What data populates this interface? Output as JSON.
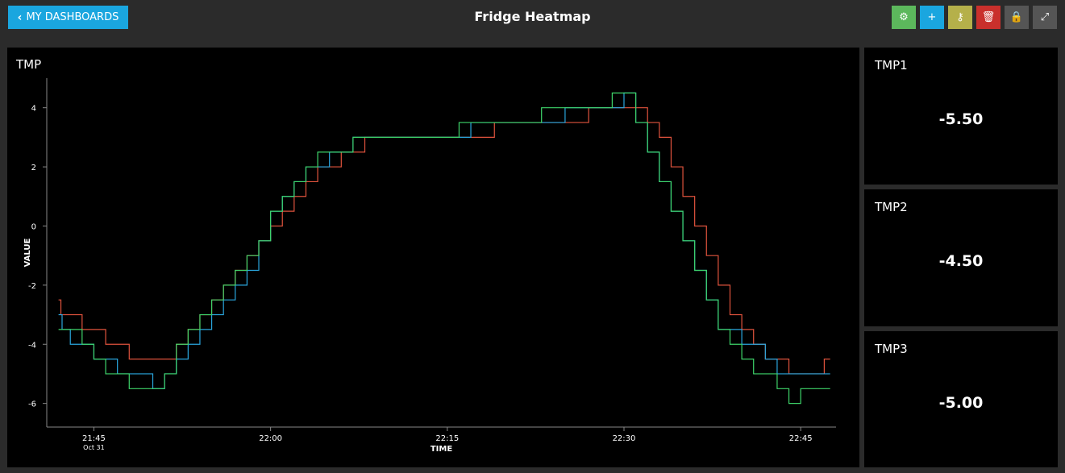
{
  "header": {
    "back_label": "MY DASHBOARDS",
    "title": "Fridge Heatmap",
    "tools": [
      {
        "icon": "gear-icon",
        "glyph": "⚙",
        "color": "#5cb85c"
      },
      {
        "icon": "plus-icon",
        "glyph": "+",
        "color": "#1aa6df"
      },
      {
        "icon": "key-icon",
        "glyph": "⚷",
        "color": "#b5b04a"
      },
      {
        "icon": "trash-icon",
        "glyph": "🗑",
        "color": "#c9302c"
      },
      {
        "icon": "lock-icon",
        "glyph": "🔒",
        "color": "#555555"
      },
      {
        "icon": "expand-icon",
        "glyph": "⤢",
        "color": "#555555"
      }
    ]
  },
  "chart_panel": {
    "title": "TMP"
  },
  "value_panels": [
    {
      "title": "TMP1",
      "value": "-5.50"
    },
    {
      "title": "TMP2",
      "value": "-4.50"
    },
    {
      "title": "TMP3",
      "value": "-5.00"
    }
  ],
  "chart_data": {
    "type": "line",
    "xlabel": "TIME",
    "ylabel": "VALUE",
    "x_unit": "minutes",
    "xlim": [
      "21:41",
      "22:48"
    ],
    "ylim": [
      -6.8,
      5
    ],
    "x_ticks": [
      {
        "time": "21:45",
        "label": "21:45",
        "sublabel": "Oct 31"
      },
      {
        "time": "22:00",
        "label": "22:00"
      },
      {
        "time": "22:15",
        "label": "22:15"
      },
      {
        "time": "22:30",
        "label": "22:30"
      },
      {
        "time": "22:45",
        "label": "22:45"
      }
    ],
    "y_ticks": [
      4,
      2,
      0,
      -2,
      -4,
      -6
    ],
    "grid": false,
    "series": [
      {
        "color": "#e0533d",
        "points": [
          [
            "21:42",
            -2.5
          ],
          [
            "21:42.2",
            -3
          ],
          [
            "21:44",
            -3.5
          ],
          [
            "21:46",
            -4
          ],
          [
            "21:48",
            -4.5
          ],
          [
            "21:52",
            -4
          ],
          [
            "21:53",
            -3.5
          ],
          [
            "21:54",
            -3
          ],
          [
            "21:55",
            -2.5
          ],
          [
            "21:56",
            -2
          ],
          [
            "21:57",
            -1.5
          ],
          [
            "21:58",
            -1
          ],
          [
            "21:59",
            -0.5
          ],
          [
            "22:00",
            0
          ],
          [
            "22:01",
            0.5
          ],
          [
            "22:02",
            1
          ],
          [
            "22:03",
            1.5
          ],
          [
            "22:04",
            2
          ],
          [
            "22:06",
            2.5
          ],
          [
            "22:08",
            3
          ],
          [
            "22:11",
            3
          ],
          [
            "22:15",
            3
          ],
          [
            "22:19",
            3.5
          ],
          [
            "22:24",
            3.5
          ],
          [
            "22:27",
            4
          ],
          [
            "22:30",
            4
          ],
          [
            "22:32",
            3.5
          ],
          [
            "22:33",
            3
          ],
          [
            "22:34",
            2
          ],
          [
            "22:35",
            1
          ],
          [
            "22:36",
            0
          ],
          [
            "22:37",
            -1
          ],
          [
            "22:38",
            -2
          ],
          [
            "22:39",
            -3
          ],
          [
            "22:40",
            -3.5
          ],
          [
            "22:41",
            -4
          ],
          [
            "22:42",
            -4.5
          ],
          [
            "22:44",
            -5
          ],
          [
            "22:46",
            -5
          ],
          [
            "22:47",
            -4.5
          ],
          [
            "22:47.5",
            -4.5
          ]
        ]
      },
      {
        "color": "#2aa7df",
        "points": [
          [
            "21:42",
            -3
          ],
          [
            "21:42.3",
            -3.5
          ],
          [
            "21:43",
            -4
          ],
          [
            "21:45",
            -4.5
          ],
          [
            "21:47",
            -5
          ],
          [
            "21:50",
            -5.5
          ],
          [
            "21:51",
            -5
          ],
          [
            "21:52",
            -4.5
          ],
          [
            "21:53",
            -4
          ],
          [
            "21:54",
            -3.5
          ],
          [
            "21:55",
            -3
          ],
          [
            "21:56",
            -2.5
          ],
          [
            "21:57",
            -2
          ],
          [
            "21:58",
            -1.5
          ],
          [
            "21:59",
            -0.5
          ],
          [
            "22:00",
            0.5
          ],
          [
            "22:01",
            1
          ],
          [
            "22:02",
            1.5
          ],
          [
            "22:03",
            2
          ],
          [
            "22:05",
            2.5
          ],
          [
            "22:07",
            3
          ],
          [
            "22:11",
            3
          ],
          [
            "22:14",
            3
          ],
          [
            "22:17",
            3.5
          ],
          [
            "22:21",
            3.5
          ],
          [
            "22:25",
            4
          ],
          [
            "22:28",
            4
          ],
          [
            "22:30",
            4.5
          ],
          [
            "22:31",
            3.5
          ],
          [
            "22:32",
            2.5
          ],
          [
            "22:33",
            1.5
          ],
          [
            "22:34",
            0.5
          ],
          [
            "22:35",
            -0.5
          ],
          [
            "22:36",
            -1.5
          ],
          [
            "22:37",
            -2.5
          ],
          [
            "22:38",
            -3.5
          ],
          [
            "22:40",
            -4
          ],
          [
            "22:42",
            -4.5
          ],
          [
            "22:43",
            -5
          ],
          [
            "22:47.5",
            -5
          ]
        ]
      },
      {
        "color": "#3ed46a",
        "points": [
          [
            "21:42",
            -3.5
          ],
          [
            "21:43",
            -3.5
          ],
          [
            "21:44",
            -4
          ],
          [
            "21:45",
            -4.5
          ],
          [
            "21:46",
            -5
          ],
          [
            "21:48",
            -5.5
          ],
          [
            "21:50",
            -5.5
          ],
          [
            "21:51",
            -5
          ],
          [
            "21:52",
            -4
          ],
          [
            "21:53",
            -3.5
          ],
          [
            "21:54",
            -3
          ],
          [
            "21:55",
            -2.5
          ],
          [
            "21:56",
            -2
          ],
          [
            "21:57",
            -1.5
          ],
          [
            "21:58",
            -1
          ],
          [
            "21:59",
            -0.5
          ],
          [
            "22:00",
            0.5
          ],
          [
            "22:01",
            1
          ],
          [
            "22:02",
            1.5
          ],
          [
            "22:03",
            2
          ],
          [
            "22:04",
            2.5
          ],
          [
            "22:06",
            2.5
          ],
          [
            "22:07",
            3
          ],
          [
            "22:10",
            3
          ],
          [
            "22:13",
            3
          ],
          [
            "22:16",
            3.5
          ],
          [
            "22:20",
            3.5
          ],
          [
            "22:23",
            4
          ],
          [
            "22:26",
            4
          ],
          [
            "22:29",
            4.5
          ],
          [
            "22:30",
            4.5
          ],
          [
            "22:31",
            3.5
          ],
          [
            "22:32",
            2.5
          ],
          [
            "22:33",
            1.5
          ],
          [
            "22:34",
            0.5
          ],
          [
            "22:35",
            -0.5
          ],
          [
            "22:36",
            -1.5
          ],
          [
            "22:37",
            -2.5
          ],
          [
            "22:38",
            -3.5
          ],
          [
            "22:39",
            -4
          ],
          [
            "22:40",
            -4.5
          ],
          [
            "22:41",
            -5
          ],
          [
            "22:43",
            -5.5
          ],
          [
            "22:44",
            -6
          ],
          [
            "22:45",
            -5.5
          ],
          [
            "22:47.5",
            -5.5
          ]
        ]
      }
    ]
  }
}
